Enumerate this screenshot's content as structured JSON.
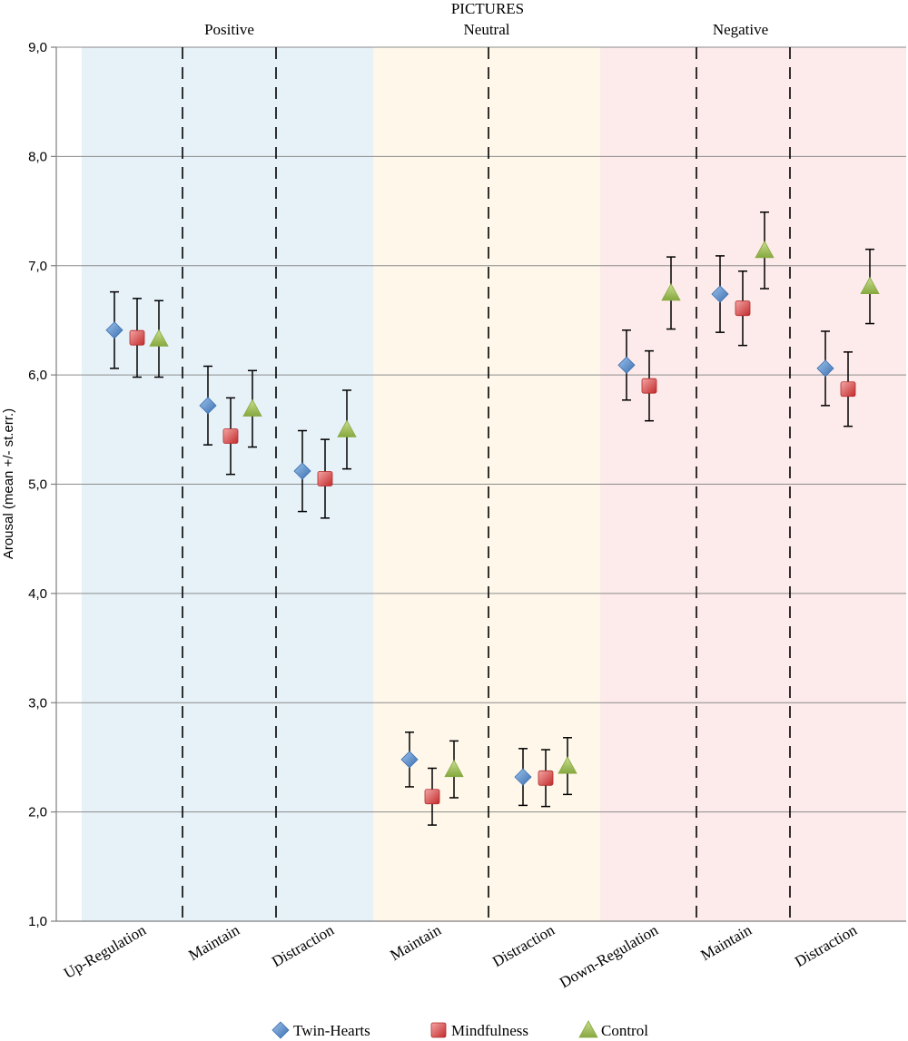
{
  "chart_data": {
    "type": "scatter",
    "title": "PICTURES",
    "ylabel": "Arousal (mean +/- st.err.)",
    "xlabel": "",
    "ylim": [
      1,
      9
    ],
    "yticks": [
      "1,0",
      "2,0",
      "3,0",
      "4,0",
      "5,0",
      "6,0",
      "7,0",
      "8,0",
      "9,0"
    ],
    "grid": true,
    "legend_position": "bottom",
    "groups": [
      {
        "name": "Positive",
        "color": "#e6f1f8",
        "categories": [
          "Up-Regulation",
          "Maintain",
          "Distraction"
        ]
      },
      {
        "name": "Neutral",
        "color": "#fef7ea",
        "categories": [
          "Maintain",
          "Distraction"
        ]
      },
      {
        "name": "Negative",
        "color": "#fdeaea",
        "categories": [
          "Down-Regulation",
          "Maintain",
          "Distraction"
        ]
      }
    ],
    "categories": [
      "Up-Regulation",
      "Maintain",
      "Distraction",
      "Maintain",
      "Distraction",
      "Down-Regulation",
      "Maintain",
      "Distraction"
    ],
    "series": [
      {
        "name": "Twin-Hearts",
        "marker": "diamond",
        "color": "#4f81bd",
        "values": [
          6.41,
          5.72,
          5.12,
          2.48,
          2.32,
          6.09,
          6.74,
          6.06
        ],
        "errors": [
          0.35,
          0.36,
          0.37,
          0.25,
          0.26,
          0.32,
          0.35,
          0.34
        ]
      },
      {
        "name": "Mindfulness",
        "marker": "square",
        "color": "#d93d3d",
        "values": [
          6.34,
          5.44,
          5.05,
          2.14,
          2.31,
          5.9,
          6.61,
          5.87
        ],
        "errors": [
          0.36,
          0.35,
          0.36,
          0.26,
          0.26,
          0.32,
          0.34,
          0.34
        ]
      },
      {
        "name": "Control",
        "marker": "triangle",
        "color": "#9bbb59",
        "values": [
          6.33,
          5.69,
          5.5,
          2.39,
          2.42,
          6.75,
          7.14,
          6.81
        ],
        "errors": [
          0.35,
          0.35,
          0.36,
          0.26,
          0.26,
          0.33,
          0.35,
          0.34
        ]
      }
    ]
  }
}
